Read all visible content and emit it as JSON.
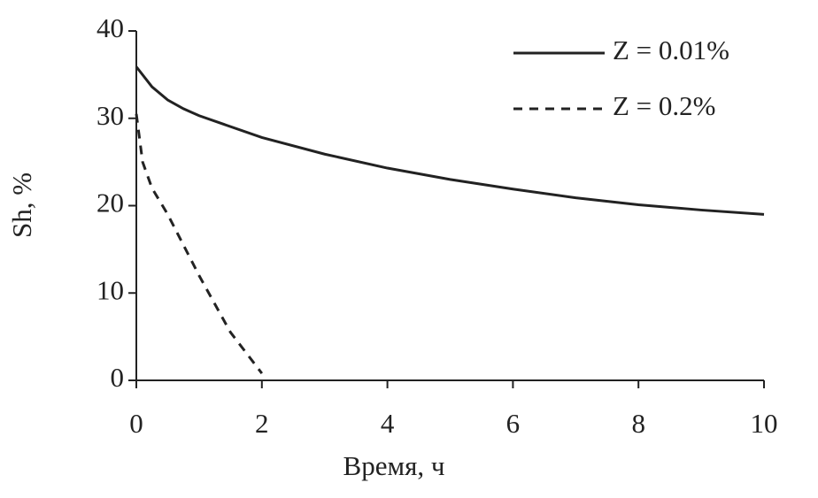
{
  "chart_data": {
    "type": "line",
    "x_label": "Время, ч",
    "y_label": "Sh, %",
    "xlim": [
      0,
      10
    ],
    "xticks": [
      0,
      2,
      4,
      6,
      8,
      10
    ],
    "ylim": [
      0,
      40
    ],
    "yticks": [
      0,
      10,
      20,
      30,
      40
    ],
    "grid": false,
    "legend": "upper right",
    "series": [
      {
        "name": "Z = 0.01%",
        "color": "#222222",
        "dash": "solid",
        "x": [
          0,
          0.25,
          0.5,
          0.75,
          1,
          2,
          3,
          4,
          5,
          6,
          7,
          8,
          9,
          10
        ],
        "values": [
          35.9,
          33.6,
          32.1,
          31.1,
          30.3,
          27.8,
          25.9,
          24.3,
          23,
          21.9,
          20.9,
          20.1,
          19.5,
          19
        ]
      },
      {
        "name": "Z = 0.2%",
        "color": "#222222",
        "dash": "dashed",
        "x": [
          0,
          0.1,
          0.25,
          0.5,
          1,
          1.5,
          2
        ],
        "values": [
          30.5,
          25,
          22,
          19,
          12,
          5.5,
          0.8
        ]
      }
    ]
  }
}
